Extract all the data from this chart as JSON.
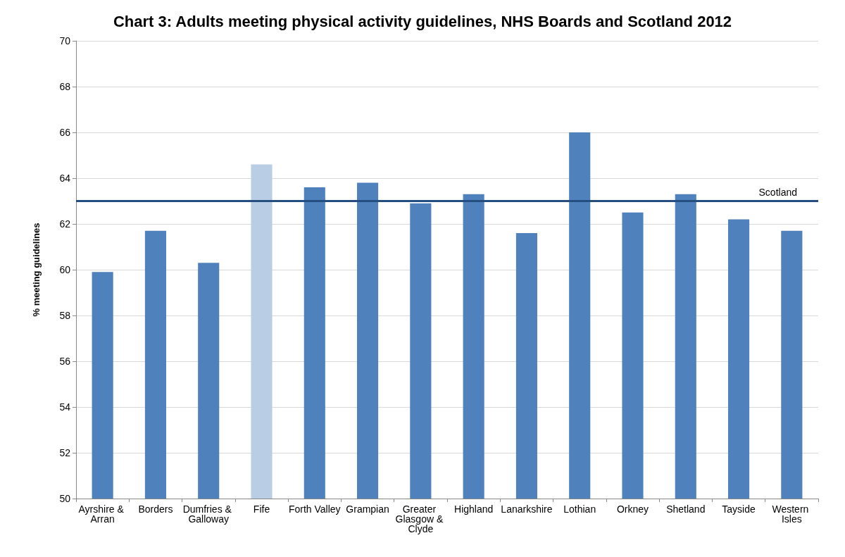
{
  "chart_data": {
    "type": "bar",
    "title": "Chart 3: Adults meeting physical activity guidelines, NHS Boards and Scotland 2012",
    "ylabel": "% meeting guidelines",
    "categories": [
      "Ayrshire & Arran",
      "Borders",
      "Dumfries & Galloway",
      "Fife",
      "Forth Valley",
      "Grampian",
      "Greater Glasgow & Clyde",
      "Highland",
      "Lanarkshire",
      "Lothian",
      "Orkney",
      "Shetland",
      "Tayside",
      "Western Isles"
    ],
    "values": [
      59.9,
      61.7,
      60.3,
      64.6,
      63.6,
      63.8,
      62.9,
      63.3,
      61.6,
      66.0,
      62.5,
      63.3,
      62.2,
      61.7
    ],
    "colors": [
      "#4f81bd",
      "#4f81bd",
      "#4f81bd",
      "#b9cde5",
      "#4f81bd",
      "#4f81bd",
      "#4f81bd",
      "#4f81bd",
      "#4f81bd",
      "#4f81bd",
      "#4f81bd",
      "#4f81bd",
      "#4f81bd",
      "#4f81bd"
    ],
    "ylim": [
      50,
      70
    ],
    "yticks": [
      50,
      52,
      54,
      56,
      58,
      60,
      62,
      64,
      66,
      68,
      70
    ],
    "grid": "y",
    "ref_lines": [
      {
        "axis": "y",
        "value": 63.0,
        "label": "Scotland",
        "color": "#254e80"
      }
    ]
  }
}
